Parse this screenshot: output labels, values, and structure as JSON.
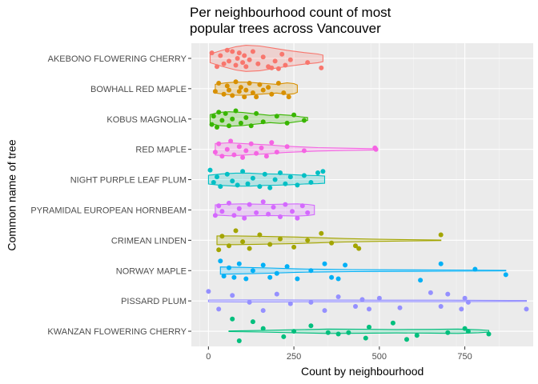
{
  "chart_data": {
    "type": "violin",
    "title_lines": [
      "Per neighbourhood count of most",
      "popular trees across Vancouver"
    ],
    "xlabel": "Count by neighbourhood",
    "ylabel": "Common name of tree",
    "xlim": [
      -50,
      950
    ],
    "x_ticks": [
      0,
      250,
      500,
      750
    ],
    "grid": true,
    "legend": "none",
    "series": [
      {
        "name": "AKEBONO FLOWERING CHERRY",
        "color": "#F8766D",
        "min": 5,
        "max": 335,
        "violin": [
          [
            5,
            0.3
          ],
          [
            40,
            0.55
          ],
          [
            80,
            0.8
          ],
          [
            110,
            0.9
          ],
          [
            150,
            0.85
          ],
          [
            190,
            0.7
          ],
          [
            230,
            0.55
          ],
          [
            280,
            0.4
          ],
          [
            320,
            0.3
          ],
          [
            335,
            0.22
          ]
        ],
        "points": [
          [
            10,
            -0.2
          ],
          [
            25,
            0.3
          ],
          [
            35,
            -0.1
          ],
          [
            45,
            0.2
          ],
          [
            55,
            -0.3
          ],
          [
            60,
            0.1
          ],
          [
            70,
            -0.25
          ],
          [
            80,
            0.25
          ],
          [
            85,
            0.0
          ],
          [
            90,
            -0.2
          ],
          [
            100,
            0.15
          ],
          [
            105,
            -0.1
          ],
          [
            110,
            0.3
          ],
          [
            120,
            0.05
          ],
          [
            130,
            -0.25
          ],
          [
            145,
            0.2
          ],
          [
            160,
            -0.05
          ],
          [
            175,
            0.3
          ],
          [
            185,
            0.35
          ],
          [
            195,
            0.1
          ],
          [
            205,
            0.38
          ],
          [
            215,
            -0.15
          ],
          [
            225,
            0.25
          ],
          [
            240,
            0.05
          ],
          [
            290,
            0.15
          ],
          [
            330,
            0.35
          ]
        ]
      },
      {
        "name": "BOWHALL RED MAPLE",
        "color": "#D89000",
        "min": 20,
        "max": 260,
        "violin": [
          [
            20,
            0.3
          ],
          [
            50,
            0.4
          ],
          [
            80,
            0.45
          ],
          [
            110,
            0.45
          ],
          [
            140,
            0.4
          ],
          [
            170,
            0.35
          ],
          [
            200,
            0.3
          ],
          [
            230,
            0.4
          ],
          [
            250,
            0.35
          ],
          [
            260,
            0.25
          ]
        ],
        "points": [
          [
            20,
            0.1
          ],
          [
            30,
            -0.2
          ],
          [
            45,
            0.2
          ],
          [
            55,
            -0.1
          ],
          [
            60,
            0.05
          ],
          [
            70,
            0.25
          ],
          [
            80,
            -0.25
          ],
          [
            90,
            0.1
          ],
          [
            95,
            -0.05
          ],
          [
            105,
            0.3
          ],
          [
            110,
            0.05
          ],
          [
            120,
            -0.2
          ],
          [
            130,
            0.15
          ],
          [
            140,
            0.3
          ],
          [
            150,
            -0.15
          ],
          [
            160,
            0.05
          ],
          [
            175,
            -0.05
          ],
          [
            185,
            0.2
          ],
          [
            205,
            -0.2
          ],
          [
            220,
            0.15
          ],
          [
            235,
            0.3
          ]
        ]
      },
      {
        "name": "KOBUS MAGNOLIA",
        "color": "#39B600",
        "min": 5,
        "max": 290,
        "violin": [
          [
            5,
            0.3
          ],
          [
            30,
            0.45
          ],
          [
            60,
            0.5
          ],
          [
            100,
            0.45
          ],
          [
            140,
            0.35
          ],
          [
            180,
            0.25
          ],
          [
            210,
            0.3
          ],
          [
            240,
            0.25
          ],
          [
            270,
            0.15
          ],
          [
            290,
            0.1
          ]
        ],
        "points": [
          [
            10,
            0.2
          ],
          [
            15,
            -0.1
          ],
          [
            25,
            0.3
          ],
          [
            30,
            -0.25
          ],
          [
            40,
            0.05
          ],
          [
            50,
            -0.2
          ],
          [
            60,
            0.25
          ],
          [
            70,
            0.0
          ],
          [
            80,
            -0.3
          ],
          [
            95,
            0.15
          ],
          [
            110,
            -0.05
          ],
          [
            125,
            0.25
          ],
          [
            140,
            -0.2
          ],
          [
            160,
            0.1
          ],
          [
            200,
            -0.1
          ],
          [
            230,
            0.15
          ],
          [
            250,
            -0.15
          ],
          [
            280,
            0.05
          ]
        ]
      },
      {
        "name": "RED MAPLE",
        "color": "#F564E3",
        "min": 20,
        "max": 490,
        "violin": [
          [
            20,
            0.4
          ],
          [
            60,
            0.45
          ],
          [
            100,
            0.4
          ],
          [
            140,
            0.35
          ],
          [
            180,
            0.3
          ],
          [
            220,
            0.22
          ],
          [
            260,
            0.18
          ],
          [
            320,
            0.12
          ],
          [
            400,
            0.08
          ],
          [
            490,
            0.04
          ]
        ],
        "points": [
          [
            20,
            0.1
          ],
          [
            30,
            -0.2
          ],
          [
            40,
            0.25
          ],
          [
            55,
            0.0
          ],
          [
            65,
            -0.3
          ],
          [
            75,
            0.2
          ],
          [
            90,
            -0.1
          ],
          [
            100,
            0.3
          ],
          [
            110,
            0.05
          ],
          [
            125,
            -0.2
          ],
          [
            140,
            0.15
          ],
          [
            155,
            -0.05
          ],
          [
            170,
            0.25
          ],
          [
            185,
            -0.25
          ],
          [
            200,
            0.1
          ],
          [
            230,
            -0.1
          ],
          [
            280,
            0.05
          ],
          [
            487,
            -0.05
          ],
          [
            490,
            0.0
          ]
        ]
      },
      {
        "name": "NIGHT PURPLE LEAF PLUM",
        "color": "#00BFC4",
        "min": 0,
        "max": 340,
        "violin": [
          [
            0,
            0.3
          ],
          [
            40,
            0.4
          ],
          [
            80,
            0.45
          ],
          [
            120,
            0.45
          ],
          [
            160,
            0.4
          ],
          [
            200,
            0.38
          ],
          [
            240,
            0.35
          ],
          [
            280,
            0.3
          ],
          [
            320,
            0.28
          ],
          [
            340,
            0.25
          ]
        ],
        "points": [
          [
            5,
            -0.35
          ],
          [
            15,
            0.1
          ],
          [
            25,
            -0.1
          ],
          [
            35,
            0.25
          ],
          [
            55,
            -0.2
          ],
          [
            70,
            0.05
          ],
          [
            85,
            0.2
          ],
          [
            100,
            -0.3
          ],
          [
            115,
            0.15
          ],
          [
            130,
            -0.05
          ],
          [
            150,
            0.25
          ],
          [
            165,
            -0.2
          ],
          [
            180,
            0.3
          ],
          [
            195,
            0.0
          ],
          [
            210,
            -0.25
          ],
          [
            225,
            0.15
          ],
          [
            240,
            -0.1
          ],
          [
            260,
            0.2
          ],
          [
            280,
            -0.15
          ],
          [
            300,
            0.1
          ],
          [
            320,
            -0.25
          ],
          [
            335,
            -0.3
          ]
        ]
      },
      {
        "name": "PYRAMIDAL EUROPEAN HORNBEAM",
        "color": "#D469FE",
        "min": 20,
        "max": 310,
        "violin": [
          [
            20,
            0.35
          ],
          [
            60,
            0.4
          ],
          [
            100,
            0.42
          ],
          [
            140,
            0.4
          ],
          [
            180,
            0.38
          ],
          [
            220,
            0.4
          ],
          [
            260,
            0.42
          ],
          [
            290,
            0.38
          ],
          [
            310,
            0.32
          ]
        ],
        "points": [
          [
            20,
            0.2
          ],
          [
            30,
            -0.15
          ],
          [
            40,
            0.05
          ],
          [
            60,
            -0.25
          ],
          [
            75,
            0.2
          ],
          [
            90,
            -0.05
          ],
          [
            105,
            0.3
          ],
          [
            120,
            -0.2
          ],
          [
            140,
            0.1
          ],
          [
            160,
            -0.3
          ],
          [
            175,
            0.15
          ],
          [
            190,
            -0.1
          ],
          [
            210,
            0.25
          ],
          [
            225,
            -0.2
          ],
          [
            245,
            0.05
          ],
          [
            260,
            0.3
          ],
          [
            275,
            -0.15
          ],
          [
            290,
            0.1
          ]
        ]
      },
      {
        "name": "CRIMEAN LINDEN",
        "color": "#A3A500",
        "min": 25,
        "max": 680,
        "violin": [
          [
            25,
            0.3
          ],
          [
            80,
            0.3
          ],
          [
            140,
            0.28
          ],
          [
            200,
            0.25
          ],
          [
            260,
            0.22
          ],
          [
            320,
            0.18
          ],
          [
            400,
            0.12
          ],
          [
            480,
            0.08
          ],
          [
            560,
            0.05
          ],
          [
            680,
            0.02
          ]
        ],
        "points": [
          [
            30,
            0.35
          ],
          [
            40,
            -0.15
          ],
          [
            60,
            0.2
          ],
          [
            80,
            -0.35
          ],
          [
            100,
            0.05
          ],
          [
            120,
            0.3
          ],
          [
            150,
            -0.2
          ],
          [
            180,
            0.15
          ],
          [
            210,
            -0.05
          ],
          [
            250,
            0.25
          ],
          [
            290,
            0.0
          ],
          [
            330,
            -0.25
          ],
          [
            360,
            0.1
          ],
          [
            430,
            0.2
          ],
          [
            440,
            0.3
          ],
          [
            680,
            -0.2
          ]
        ]
      },
      {
        "name": "NORWAY MAPLE",
        "color": "#00B0F6",
        "min": 35,
        "max": 870,
        "violin": [
          [
            35,
            0.25
          ],
          [
            100,
            0.22
          ],
          [
            180,
            0.18
          ],
          [
            260,
            0.12
          ],
          [
            340,
            0.09
          ],
          [
            420,
            0.07
          ],
          [
            500,
            0.06
          ],
          [
            600,
            0.05
          ],
          [
            700,
            0.04
          ],
          [
            870,
            0.02
          ]
        ],
        "points": [
          [
            35,
            -0.35
          ],
          [
            45,
            0.2
          ],
          [
            60,
            -0.1
          ],
          [
            75,
            0.25
          ],
          [
            90,
            -0.25
          ],
          [
            110,
            0.3
          ],
          [
            130,
            0.0
          ],
          [
            160,
            -0.2
          ],
          [
            180,
            0.25
          ],
          [
            200,
            0.1
          ],
          [
            230,
            -0.15
          ],
          [
            260,
            0.3
          ],
          [
            300,
            0.0
          ],
          [
            340,
            -0.25
          ],
          [
            360,
            0.25
          ],
          [
            380,
            0.3
          ],
          [
            400,
            -0.2
          ],
          [
            620,
            0.35
          ],
          [
            680,
            -0.25
          ],
          [
            780,
            -0.05
          ],
          [
            870,
            0.15
          ]
        ]
      },
      {
        "name": "PISSARD PLUM",
        "color": "#9590FF",
        "min": 0,
        "max": 930,
        "violin": [
          [
            0,
            0.06
          ],
          [
            100,
            0.07
          ],
          [
            200,
            0.07
          ],
          [
            300,
            0.06
          ],
          [
            400,
            0.06
          ],
          [
            500,
            0.05
          ],
          [
            600,
            0.05
          ],
          [
            700,
            0.05
          ],
          [
            800,
            0.04
          ],
          [
            930,
            0.03
          ]
        ],
        "points": [
          [
            0,
            -0.35
          ],
          [
            30,
            0.3
          ],
          [
            70,
            -0.2
          ],
          [
            120,
            0.05
          ],
          [
            160,
            0.35
          ],
          [
            200,
            -0.25
          ],
          [
            240,
            0.1
          ],
          [
            300,
            0.05
          ],
          [
            340,
            0.35
          ],
          [
            380,
            -0.15
          ],
          [
            430,
            0.2
          ],
          [
            450,
            -0.05
          ],
          [
            470,
            0.3
          ],
          [
            500,
            -0.1
          ],
          [
            560,
            0.25
          ],
          [
            650,
            -0.3
          ],
          [
            680,
            0.2
          ],
          [
            700,
            -0.25
          ],
          [
            740,
            0.3
          ],
          [
            750,
            -0.1
          ],
          [
            760,
            0.05
          ],
          [
            930,
            0.3
          ]
        ]
      },
      {
        "name": "KWANZAN FLOWERING CHERRY",
        "color": "#00BF7D",
        "min": 60,
        "max": 820,
        "violin": [
          [
            60,
            0.02
          ],
          [
            150,
            0.05
          ],
          [
            250,
            0.1
          ],
          [
            350,
            0.15
          ],
          [
            450,
            0.14
          ],
          [
            550,
            0.12
          ],
          [
            650,
            0.13
          ],
          [
            730,
            0.15
          ],
          [
            790,
            0.1
          ],
          [
            820,
            0.06
          ]
        ],
        "points": [
          [
            70,
            -0.45
          ],
          [
            90,
            0.35
          ],
          [
            130,
            -0.35
          ],
          [
            160,
            -0.1
          ],
          [
            220,
            0.2
          ],
          [
            250,
            0.0
          ],
          [
            300,
            -0.2
          ],
          [
            350,
            0.05
          ],
          [
            380,
            0.1
          ],
          [
            410,
            0.05
          ],
          [
            460,
            0.25
          ],
          [
            470,
            -0.15
          ],
          [
            540,
            -0.3
          ],
          [
            580,
            0.3
          ],
          [
            610,
            0.15
          ],
          [
            700,
            0.05
          ],
          [
            750,
            -0.1
          ],
          [
            760,
            0.0
          ],
          [
            820,
            0.1
          ]
        ]
      }
    ]
  }
}
